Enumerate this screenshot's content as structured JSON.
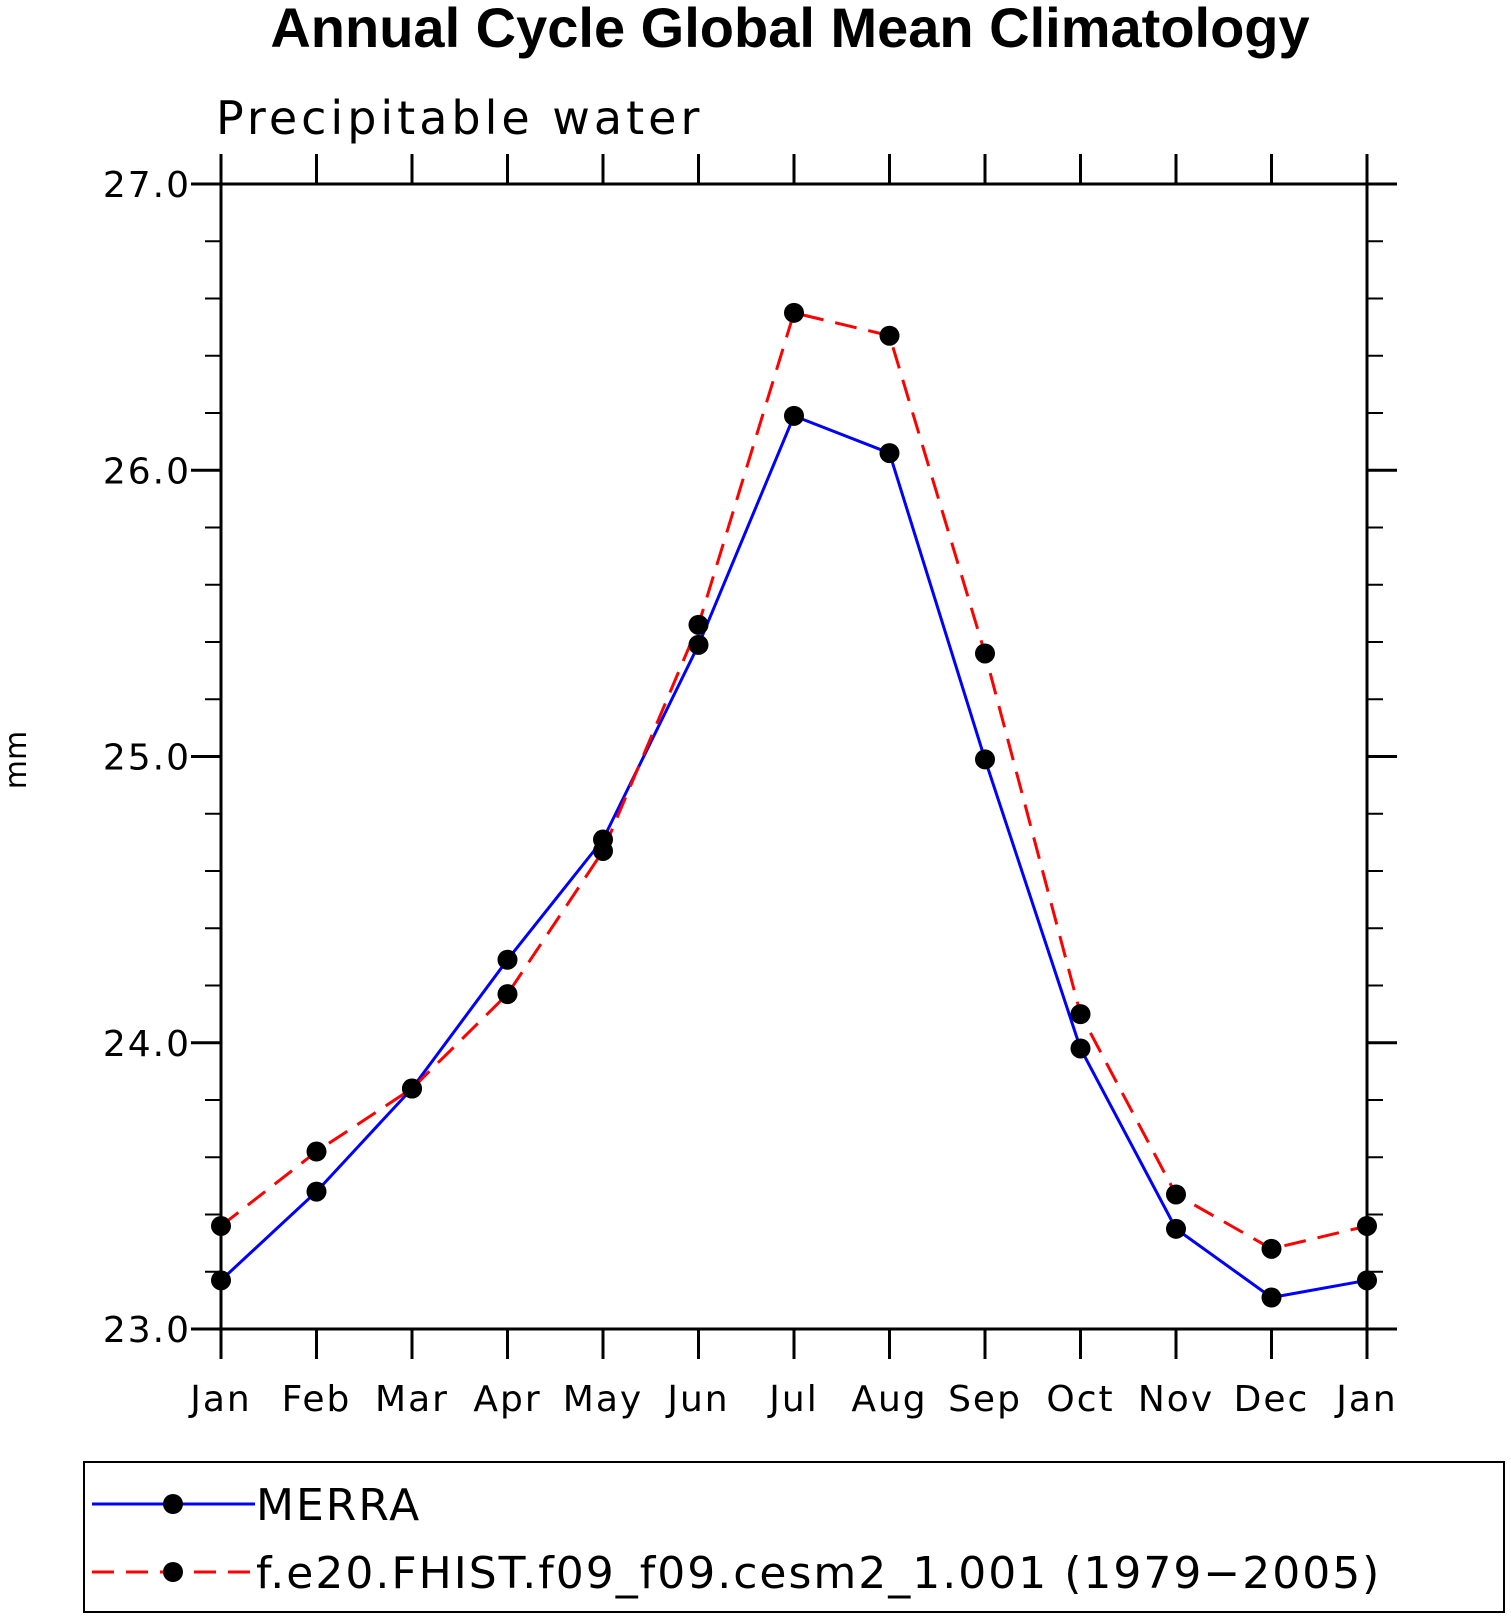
{
  "chart_data": {
    "type": "line",
    "title": "Annual Cycle Global Mean Climatology",
    "subtitle": "Precipitable water",
    "xlabel": "",
    "ylabel": "mm",
    "categories": [
      "Jan",
      "Feb",
      "Mar",
      "Apr",
      "May",
      "Jun",
      "Jul",
      "Aug",
      "Sep",
      "Oct",
      "Nov",
      "Dec",
      "Jan"
    ],
    "ylim": [
      23.0,
      27.0
    ],
    "yticks": [
      "23.0",
      "24.0",
      "25.0",
      "26.0",
      "27.0"
    ],
    "y_minor_step": 0.2,
    "grid": false,
    "legend_position": "bottom",
    "series": [
      {
        "name": "MERRA",
        "color": "#0000ff",
        "dash": "solid",
        "marker": "circle",
        "values": [
          23.17,
          23.48,
          23.84,
          24.29,
          24.71,
          25.39,
          26.19,
          26.06,
          24.99,
          23.98,
          23.35,
          23.11,
          23.17
        ]
      },
      {
        "name": "f.e20.FHIST.f09_f09.cesm2_1.001 (1979−2005)",
        "color": "#ff0000",
        "dash": "dashed",
        "marker": "circle",
        "values": [
          23.36,
          23.62,
          23.84,
          24.17,
          24.67,
          25.46,
          26.55,
          26.47,
          25.36,
          24.1,
          23.47,
          23.28,
          23.36
        ]
      }
    ]
  }
}
